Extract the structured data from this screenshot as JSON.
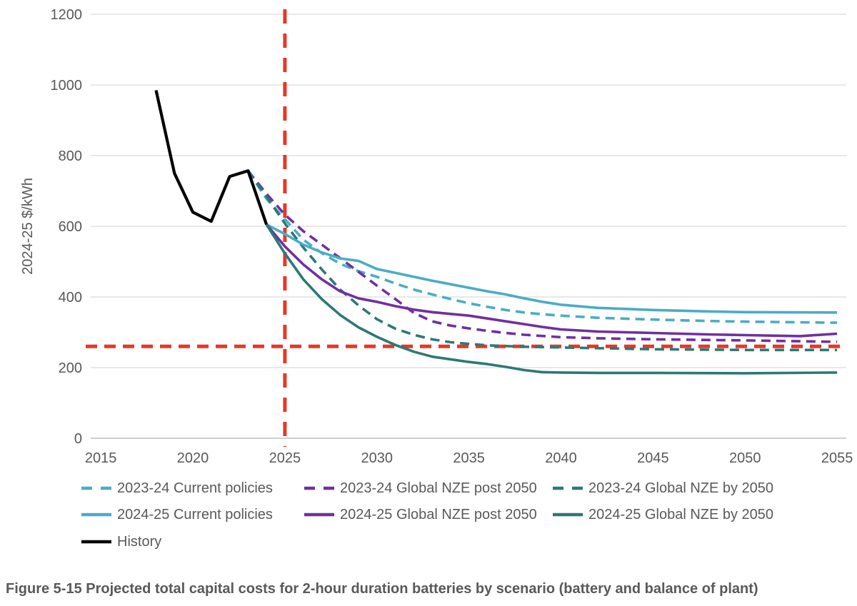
{
  "figure": {
    "caption": "Figure 5-15 Projected total capital costs for 2-hour duration batteries by scenario (battery and balance of plant)"
  },
  "chart_data": {
    "type": "line",
    "title": "",
    "xlabel": "",
    "ylabel": "2024-25 $/kWh",
    "xlim": [
      2015,
      2055
    ],
    "ylim": [
      0,
      1200
    ],
    "xticks": [
      2015,
      2020,
      2025,
      2030,
      2035,
      2040,
      2045,
      2050,
      2055
    ],
    "yticks": [
      0,
      200,
      400,
      600,
      800,
      1000,
      1200
    ],
    "grid": "horizontal-only",
    "legend_position": "bottom",
    "colors": {
      "current_policies": "#4BACC6",
      "nze_post_2050": "#7030A0",
      "nze_by_2050": "#2C7975",
      "history": "#000000",
      "reference": "#E83724",
      "gridline": "#D9D9D9",
      "axis_line": "#BFBFBF",
      "text": "#595959"
    },
    "reference_lines": [
      {
        "id": "ref-vertical-2025",
        "orientation": "vertical",
        "at": 2025,
        "color": "#E83724",
        "style": "dashed"
      },
      {
        "id": "ref-horizontal-260",
        "orientation": "horizontal",
        "at": 260,
        "color": "#E83724",
        "style": "dashed"
      }
    ],
    "series": [
      {
        "id": "cp-2324",
        "name": "2023-24 Current policies",
        "color": "#4BACC6",
        "style": "dashed",
        "width": 3.6,
        "points": [
          [
            2023,
            757
          ],
          [
            2024,
            678
          ],
          [
            2025,
            620
          ],
          [
            2026,
            562
          ],
          [
            2027,
            524
          ],
          [
            2028,
            494
          ],
          [
            2029,
            473
          ],
          [
            2030,
            457
          ],
          [
            2031,
            438
          ],
          [
            2032,
            421
          ],
          [
            2033,
            407
          ],
          [
            2034,
            394
          ],
          [
            2035,
            382
          ],
          [
            2036,
            372
          ],
          [
            2037,
            363
          ],
          [
            2038,
            356
          ],
          [
            2039,
            351
          ],
          [
            2040,
            347
          ],
          [
            2042,
            341
          ],
          [
            2045,
            336
          ],
          [
            2048,
            332
          ],
          [
            2050,
            330
          ],
          [
            2055,
            327
          ]
        ]
      },
      {
        "id": "nzepost-2324",
        "name": "2023-24 Global NZE post 2050",
        "color": "#7030A0",
        "style": "dashed",
        "width": 3.6,
        "points": [
          [
            2023,
            757
          ],
          [
            2024,
            692
          ],
          [
            2025,
            633
          ],
          [
            2026,
            586
          ],
          [
            2027,
            548
          ],
          [
            2028,
            510
          ],
          [
            2029,
            471
          ],
          [
            2030,
            432
          ],
          [
            2031,
            394
          ],
          [
            2032,
            355
          ],
          [
            2033,
            331
          ],
          [
            2034,
            319
          ],
          [
            2035,
            311
          ],
          [
            2036,
            304
          ],
          [
            2037,
            298
          ],
          [
            2038,
            293
          ],
          [
            2040,
            286
          ],
          [
            2042,
            283
          ],
          [
            2045,
            280
          ],
          [
            2050,
            277
          ],
          [
            2055,
            273
          ]
        ]
      },
      {
        "id": "nzeby-2324",
        "name": "2023-24 Global NZE by 2050",
        "color": "#2C7975",
        "style": "dashed",
        "width": 3.6,
        "points": [
          [
            2023,
            757
          ],
          [
            2024,
            684
          ],
          [
            2025,
            608
          ],
          [
            2026,
            540
          ],
          [
            2027,
            478
          ],
          [
            2028,
            421
          ],
          [
            2029,
            376
          ],
          [
            2030,
            337
          ],
          [
            2031,
            310
          ],
          [
            2032,
            293
          ],
          [
            2033,
            280
          ],
          [
            2034,
            272
          ],
          [
            2035,
            267
          ],
          [
            2036,
            263
          ],
          [
            2037,
            261
          ],
          [
            2038,
            259
          ],
          [
            2040,
            257
          ],
          [
            2042,
            255
          ],
          [
            2045,
            252
          ],
          [
            2050,
            250
          ],
          [
            2055,
            250
          ]
        ]
      },
      {
        "id": "cp-2425",
        "name": "2024-25 Current policies",
        "color": "#4BACC6",
        "style": "solid",
        "width": 3.6,
        "points": [
          [
            2024,
            605
          ],
          [
            2025,
            578
          ],
          [
            2026,
            548
          ],
          [
            2027,
            526
          ],
          [
            2028,
            509
          ],
          [
            2029,
            502
          ],
          [
            2030,
            479
          ],
          [
            2031,
            468
          ],
          [
            2032,
            457
          ],
          [
            2033,
            446
          ],
          [
            2034,
            436
          ],
          [
            2035,
            426
          ],
          [
            2036,
            416
          ],
          [
            2037,
            407
          ],
          [
            2038,
            396
          ],
          [
            2039,
            386
          ],
          [
            2040,
            378
          ],
          [
            2042,
            369
          ],
          [
            2045,
            363
          ],
          [
            2048,
            359
          ],
          [
            2050,
            357
          ],
          [
            2055,
            356
          ]
        ]
      },
      {
        "id": "nzepost-2425",
        "name": "2024-25 Global NZE post 2050",
        "color": "#7030A0",
        "style": "solid",
        "width": 3.6,
        "points": [
          [
            2024,
            605
          ],
          [
            2025,
            543
          ],
          [
            2026,
            492
          ],
          [
            2027,
            450
          ],
          [
            2028,
            416
          ],
          [
            2029,
            396
          ],
          [
            2030,
            386
          ],
          [
            2031,
            374
          ],
          [
            2032,
            364
          ],
          [
            2033,
            357
          ],
          [
            2034,
            352
          ],
          [
            2035,
            347
          ],
          [
            2036,
            339
          ],
          [
            2037,
            331
          ],
          [
            2038,
            323
          ],
          [
            2039,
            315
          ],
          [
            2040,
            308
          ],
          [
            2042,
            302
          ],
          [
            2045,
            298
          ],
          [
            2048,
            294
          ],
          [
            2050,
            292
          ],
          [
            2053,
            289
          ],
          [
            2055,
            296
          ]
        ]
      },
      {
        "id": "nzeby-2425",
        "name": "2024-25 Global NZE by 2050",
        "color": "#2C7975",
        "style": "solid",
        "width": 3.6,
        "points": [
          [
            2024,
            605
          ],
          [
            2025,
            523
          ],
          [
            2026,
            450
          ],
          [
            2027,
            394
          ],
          [
            2028,
            349
          ],
          [
            2029,
            314
          ],
          [
            2030,
            287
          ],
          [
            2031,
            264
          ],
          [
            2032,
            245
          ],
          [
            2033,
            231
          ],
          [
            2035,
            216
          ],
          [
            2036,
            210
          ],
          [
            2037,
            202
          ],
          [
            2038,
            193
          ],
          [
            2039,
            187
          ],
          [
            2040,
            186
          ],
          [
            2042,
            185
          ],
          [
            2045,
            185
          ],
          [
            2050,
            184
          ],
          [
            2055,
            186
          ]
        ]
      },
      {
        "id": "history",
        "name": "History",
        "color": "#000000",
        "style": "solid",
        "width": 4.2,
        "points": [
          [
            2018,
            985
          ],
          [
            2019,
            750
          ],
          [
            2020,
            640
          ],
          [
            2021,
            614
          ],
          [
            2022,
            741
          ],
          [
            2023,
            757
          ],
          [
            2024,
            605
          ]
        ]
      }
    ]
  },
  "legend": {
    "entries": [
      {
        "label": "2023-24 Current policies",
        "series": "cp-2324",
        "row": 0,
        "col": 0
      },
      {
        "label": "2023-24 Global NZE post 2050",
        "series": "nzepost-2324",
        "row": 0,
        "col": 1
      },
      {
        "label": "2023-24 Global NZE by 2050",
        "series": "nzeby-2324",
        "row": 0,
        "col": 2
      },
      {
        "label": "2024-25 Current policies",
        "series": "cp-2425",
        "row": 1,
        "col": 0
      },
      {
        "label": "2024-25 Global NZE post 2050",
        "series": "nzepost-2425",
        "row": 1,
        "col": 1
      },
      {
        "label": "2024-25 Global NZE by 2050",
        "series": "nzeby-2425",
        "row": 1,
        "col": 2
      },
      {
        "label": "History",
        "series": "history",
        "row": 2,
        "col": 0
      }
    ]
  }
}
